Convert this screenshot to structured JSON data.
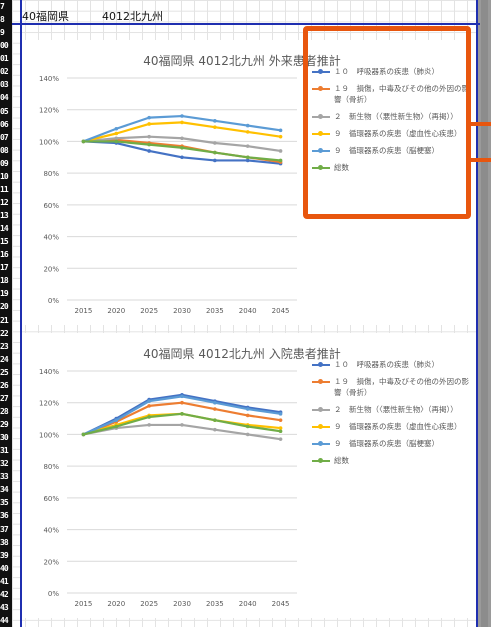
{
  "sheet": {
    "cell_a": "40福岡県",
    "cell_b": "4012北九州",
    "row_numbers": [
      "7",
      "8",
      "9",
      "00",
      "01",
      "02",
      "03",
      "04",
      "05",
      "06",
      "07",
      "08",
      "09",
      "10",
      "11",
      "12",
      "13",
      "14",
      "15",
      "16",
      "17",
      "18",
      "19",
      "20",
      "21",
      "22",
      "23",
      "24",
      "25",
      "26",
      "27",
      "28",
      "29",
      "30",
      "31",
      "32",
      "33",
      "34",
      "35",
      "36",
      "37",
      "38",
      "39",
      "40",
      "41",
      "42",
      "43",
      "44"
    ]
  },
  "colors": {
    "s1": "#4472c4",
    "s2": "#ed7d31",
    "s3": "#a5a5a5",
    "s4": "#ffc000",
    "s5": "#5b9bd5",
    "s6": "#70ad47",
    "highlight": "#e8560e",
    "frame": "#1f2fb0"
  },
  "chart_data": [
    {
      "type": "line",
      "title": "40福岡県 4012北九州 外来患者推計",
      "categories": [
        "2015",
        "2020",
        "2025",
        "2030",
        "2035",
        "2040",
        "2045"
      ],
      "ylim": [
        0,
        140
      ],
      "yticks": [
        "0%",
        "20%",
        "40%",
        "60%",
        "80%",
        "100%",
        "120%",
        "140%"
      ],
      "grid": true,
      "legend": "right",
      "series": [
        {
          "name": "１０　呼吸器系の疾患（肺炎）",
          "color_key": "s1",
          "values": [
            100,
            99,
            94,
            90,
            88,
            88,
            86
          ]
        },
        {
          "name": "１９　損傷，中毒及びその他の外因の影響（骨折）",
          "color_key": "s2",
          "values": [
            100,
            101,
            99,
            97,
            93,
            90,
            87
          ]
        },
        {
          "name": "２　新生物（〈悪性新生物〉（再掲））",
          "color_key": "s3",
          "values": [
            100,
            102,
            103,
            102,
            99,
            97,
            94
          ]
        },
        {
          "name": "９　循環器系の疾患（虚血性心疾患）",
          "color_key": "s4",
          "values": [
            100,
            105,
            111,
            112,
            109,
            106,
            103
          ]
        },
        {
          "name": "９　循環器系の疾患（脳梗塞）",
          "color_key": "s5",
          "values": [
            100,
            108,
            115,
            116,
            113,
            110,
            107
          ]
        },
        {
          "name": "総数",
          "color_key": "s6",
          "values": [
            100,
            100,
            98,
            96,
            93,
            90,
            88
          ]
        }
      ]
    },
    {
      "type": "line",
      "title": "40福岡県 4012北九州 入院患者推計",
      "categories": [
        "2015",
        "2020",
        "2025",
        "2030",
        "2035",
        "2040",
        "2045"
      ],
      "ylim": [
        0,
        140
      ],
      "yticks": [
        "0%",
        "20%",
        "40%",
        "60%",
        "80%",
        "100%",
        "120%",
        "140%"
      ],
      "grid": true,
      "legend": "right",
      "series": [
        {
          "name": "１０　呼吸器系の疾患（肺炎）",
          "color_key": "s1",
          "values": [
            100,
            110,
            122,
            125,
            121,
            117,
            114
          ]
        },
        {
          "name": "１９　損傷，中毒及びその他の外因の影響（骨折）",
          "color_key": "s2",
          "values": [
            100,
            108,
            118,
            120,
            116,
            112,
            109
          ]
        },
        {
          "name": "２　新生物（〈悪性新生物〉（再掲））",
          "color_key": "s3",
          "values": [
            100,
            104,
            106,
            106,
            103,
            100,
            97
          ]
        },
        {
          "name": "９　循環器系の疾患（虚血性心疾患）",
          "color_key": "s4",
          "values": [
            100,
            106,
            112,
            113,
            109,
            106,
            104
          ]
        },
        {
          "name": "９　循環器系の疾患（脳梗塞）",
          "color_key": "s5",
          "values": [
            100,
            109,
            121,
            124,
            120,
            116,
            113
          ]
        },
        {
          "name": "総数",
          "color_key": "s6",
          "values": [
            100,
            105,
            111,
            113,
            109,
            105,
            102
          ]
        }
      ]
    }
  ]
}
